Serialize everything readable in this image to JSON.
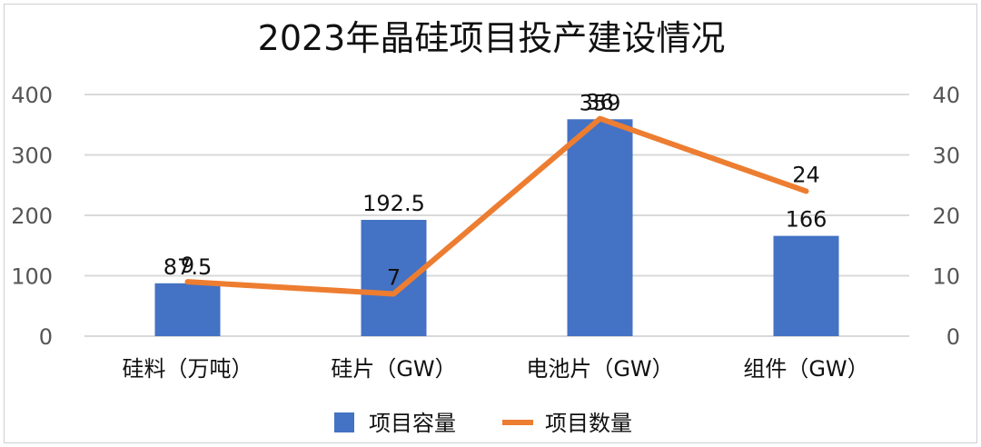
{
  "chart_data": {
    "type": "bar",
    "title": "2023年晶硅项目投产建设情况",
    "categories": [
      "硅料（万吨）",
      "硅片（GW）",
      "电池片（GW）",
      "组件（GW）"
    ],
    "series": [
      {
        "name": "项目容量",
        "type": "bar",
        "axis": "left",
        "color": "#4472C4",
        "values": [
          87.5,
          192.5,
          359,
          166
        ]
      },
      {
        "name": "项目数量",
        "type": "line",
        "axis": "right",
        "color": "#ED7D31",
        "values": [
          9,
          7,
          36,
          24
        ]
      }
    ],
    "y_left": {
      "min": 0,
      "max": 400,
      "ticks": [
        0,
        100,
        200,
        300,
        400
      ]
    },
    "y_right": {
      "min": 0,
      "max": 40,
      "ticks": [
        0,
        10,
        20,
        30,
        40
      ]
    },
    "grid": true,
    "legend": "bottom"
  }
}
